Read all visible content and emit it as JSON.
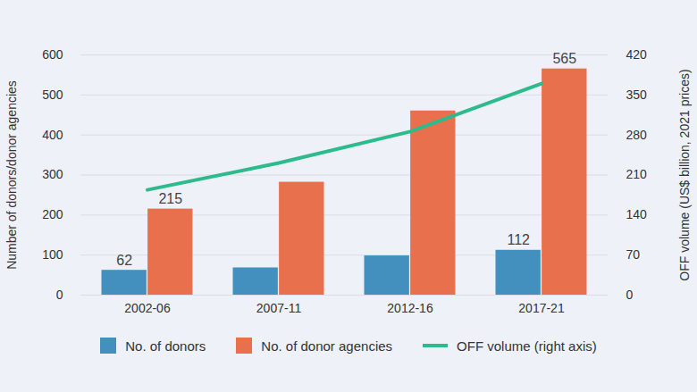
{
  "chart_data": {
    "type": "bar",
    "categories": [
      "2002-06",
      "2007-11",
      "2012-16",
      "2017-21"
    ],
    "ylabel": "Number of donors/donor agencies",
    "y2label": "OFF volume (US$ billion, 2021 prices)",
    "ylim": [
      0,
      600
    ],
    "yticks": [
      0,
      100,
      200,
      300,
      400,
      500,
      600
    ],
    "y2lim": [
      0,
      420
    ],
    "y2ticks": [
      0,
      70,
      140,
      210,
      280,
      350,
      420
    ],
    "grid": true,
    "legend": "bottom",
    "data_labels": true,
    "series": [
      {
        "name": "No. of donors",
        "type": "bar",
        "color": "#4390be",
        "values": [
          62,
          68,
          98,
          112
        ],
        "value_labels": [
          "62",
          null,
          null,
          "112"
        ]
      },
      {
        "name": "No. of donor agencies",
        "type": "bar",
        "color": "#e8704c",
        "values": [
          215,
          282,
          460,
          565
        ],
        "value_labels": [
          "215",
          null,
          null,
          "565"
        ]
      },
      {
        "name": "OFF volume (right axis)",
        "type": "line",
        "axis": "y2",
        "color": "#2dbb8b",
        "values": [
          184,
          231,
          286,
          370
        ]
      }
    ]
  }
}
